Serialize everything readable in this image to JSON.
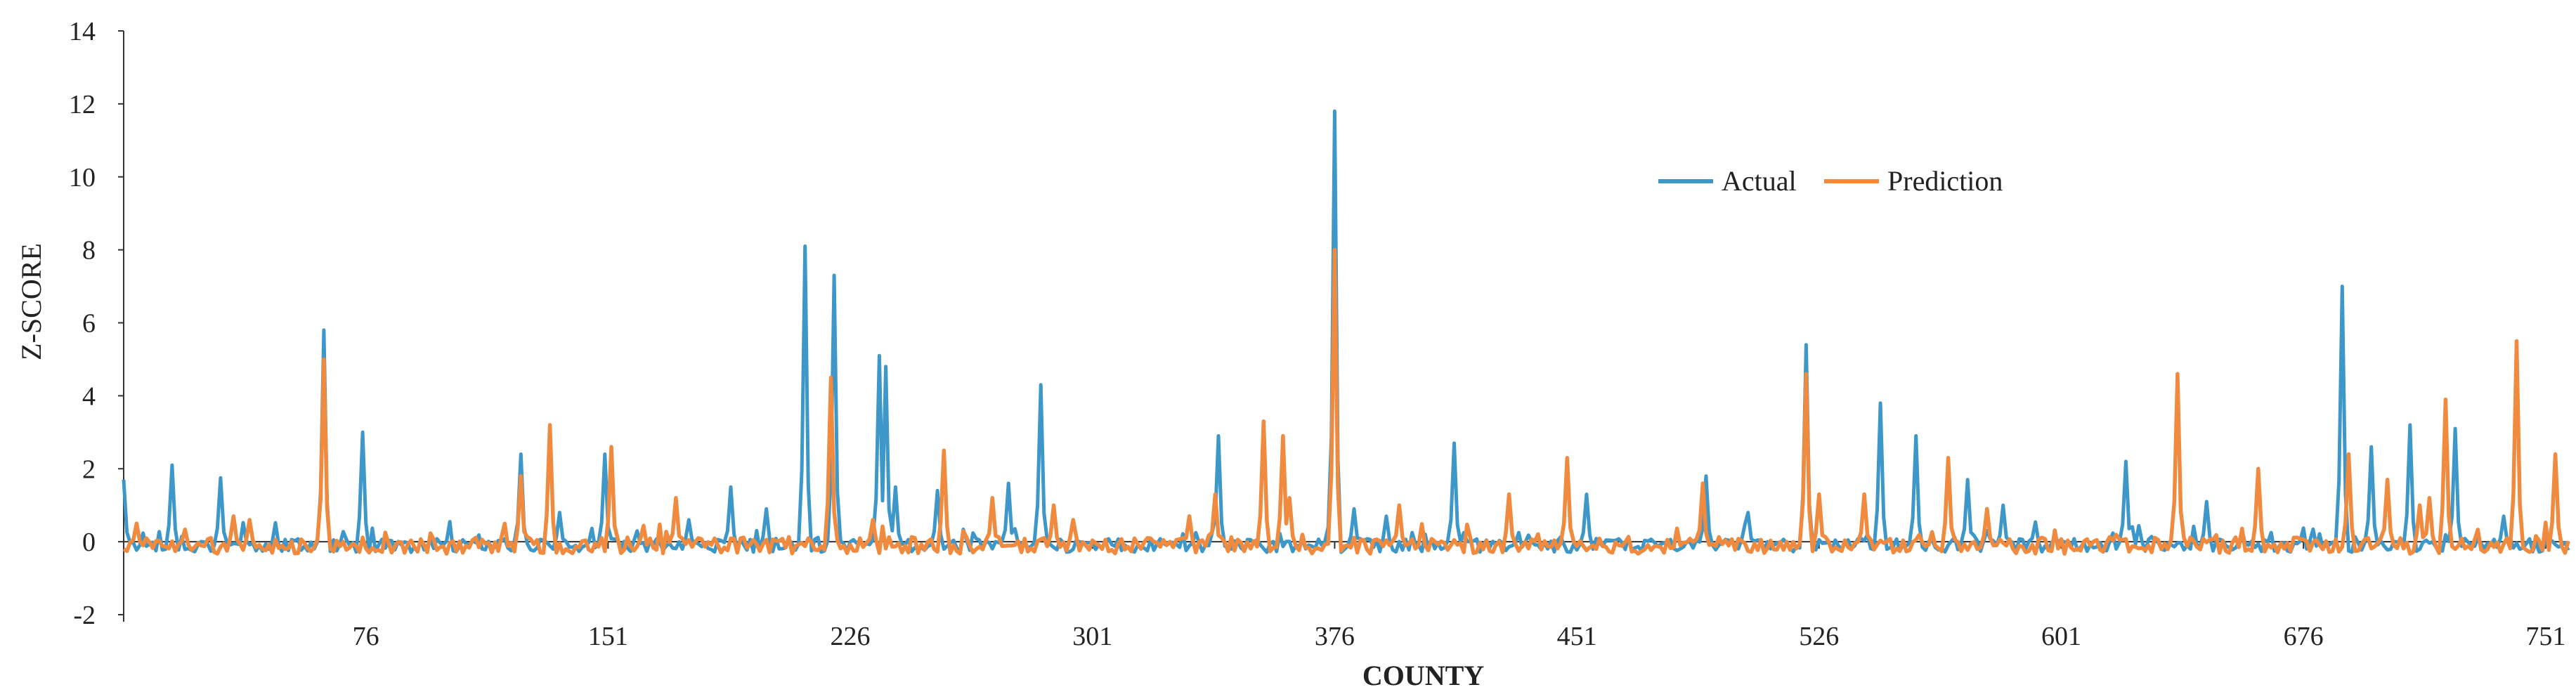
{
  "chart_data": {
    "type": "line",
    "xlabel": "COUNTY",
    "ylabel": "Z-SCORE",
    "xlim": [
      1,
      758
    ],
    "ylim": [
      -2,
      14
    ],
    "y_ticks": [
      -2,
      0,
      2,
      4,
      6,
      8,
      10,
      12,
      14
    ],
    "x_ticks": [
      76,
      151,
      226,
      301,
      376,
      451,
      526,
      601,
      676,
      751
    ],
    "grid": false,
    "legend": "top-right",
    "baseline": -0.1,
    "series": [
      {
        "name": "Actual",
        "color": "#3d97c9",
        "peaks": [
          [
            1,
            1.7
          ],
          [
            16,
            2.1
          ],
          [
            31,
            1.75
          ],
          [
            63,
            5.8
          ],
          [
            75,
            3.0
          ],
          [
            124,
            2.4
          ],
          [
            136,
            0.8
          ],
          [
            150,
            2.4
          ],
          [
            176,
            0.6
          ],
          [
            189,
            1.5
          ],
          [
            200,
            0.9
          ],
          [
            212,
            8.1
          ],
          [
            221,
            7.3
          ],
          [
            235,
            5.1
          ],
          [
            237,
            4.8
          ],
          [
            240,
            1.5
          ],
          [
            253,
            1.4
          ],
          [
            275,
            1.6
          ],
          [
            285,
            4.3
          ],
          [
            340,
            2.9
          ],
          [
            375,
            1.9
          ],
          [
            376,
            11.8
          ],
          [
            382,
            0.9
          ],
          [
            392,
            0.7
          ],
          [
            413,
            2.7
          ],
          [
            454,
            1.3
          ],
          [
            491,
            1.8
          ],
          [
            504,
            0.8
          ],
          [
            522,
            5.4
          ],
          [
            545,
            3.8
          ],
          [
            556,
            2.9
          ],
          [
            572,
            1.7
          ],
          [
            583,
            1.0
          ],
          [
            621,
            2.2
          ],
          [
            646,
            1.1
          ],
          [
            688,
            7.0
          ],
          [
            697,
            2.6
          ],
          [
            709,
            3.2
          ],
          [
            723,
            3.1
          ],
          [
            738,
            0.7
          ]
        ]
      },
      {
        "name": "Prediction",
        "color": "#f08a3e",
        "peaks": [
          [
            5,
            0.5
          ],
          [
            35,
            0.7
          ],
          [
            40,
            0.6
          ],
          [
            63,
            5.0
          ],
          [
            124,
            1.8
          ],
          [
            133,
            3.2
          ],
          [
            152,
            2.6
          ],
          [
            172,
            1.2
          ],
          [
            220,
            4.5
          ],
          [
            233,
            0.6
          ],
          [
            255,
            2.5
          ],
          [
            270,
            1.2
          ],
          [
            289,
            1.0
          ],
          [
            295,
            0.6
          ],
          [
            331,
            0.7
          ],
          [
            339,
            1.3
          ],
          [
            354,
            3.3
          ],
          [
            360,
            2.9
          ],
          [
            362,
            1.2
          ],
          [
            376,
            8.0
          ],
          [
            396,
            1.0
          ],
          [
            430,
            1.3
          ],
          [
            448,
            2.3
          ],
          [
            490,
            1.6
          ],
          [
            522,
            4.6
          ],
          [
            526,
            1.3
          ],
          [
            540,
            1.3
          ],
          [
            566,
            2.3
          ],
          [
            578,
            0.9
          ],
          [
            637,
            4.6
          ],
          [
            662,
            2.0
          ],
          [
            690,
            2.4
          ],
          [
            702,
            1.7
          ],
          [
            712,
            1.0
          ],
          [
            715,
            1.2
          ],
          [
            720,
            3.9
          ],
          [
            742,
            5.5
          ],
          [
            754,
            2.4
          ]
        ]
      }
    ]
  }
}
